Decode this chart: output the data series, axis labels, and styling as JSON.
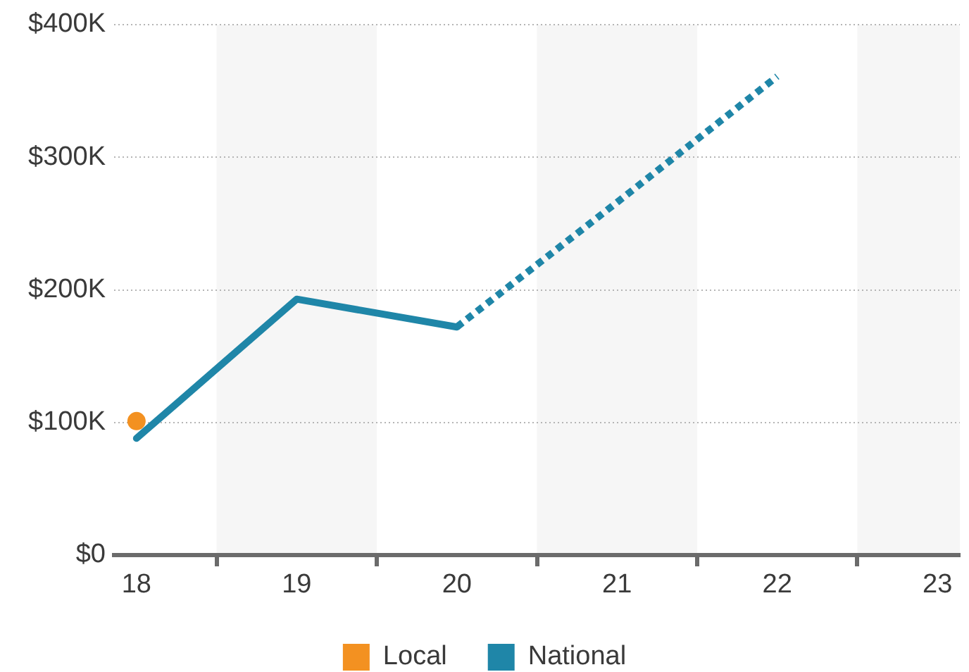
{
  "chart_data": {
    "type": "line",
    "x": [
      18,
      19,
      20,
      21,
      22
    ],
    "xlim": [
      17.86,
      23.14
    ],
    "xticks": [
      18,
      {
        "value": 18.5,
        "label": null
      },
      19,
      {
        "value": 19.5,
        "label": null
      },
      20,
      {
        "value": 20.5,
        "label": null
      },
      21,
      {
        "value": 21.5,
        "label": null
      },
      22,
      {
        "value": 22.5,
        "label": null
      },
      23
    ],
    "ylim": [
      0,
      400
    ],
    "yticks": [
      {
        "value": 0,
        "label": "$0"
      },
      {
        "value": 100,
        "label": "$100K"
      },
      {
        "value": 200,
        "label": "$200K"
      },
      {
        "value": 300,
        "label": "$300K"
      },
      {
        "value": 400,
        "label": "$400K"
      }
    ],
    "series": [
      {
        "name": "Local",
        "type": "scatter",
        "marker": "circle",
        "color": "#f39121",
        "values": [
          101,
          null,
          null,
          null,
          null
        ]
      },
      {
        "name": "National",
        "color": "#1f86a8",
        "values": [
          88,
          193,
          172,
          null,
          null
        ]
      },
      {
        "color": "#1f86a8",
        "line_style": "dotted",
        "values": [
          null,
          null,
          172,
          266,
          361
        ]
      }
    ],
    "bands": [
      {
        "axis": "x",
        "from": 18.5,
        "to": 19.5,
        "color": "#f6f6f6"
      },
      {
        "axis": "x",
        "from": 20.5,
        "to": 21.5,
        "color": "#f6f6f6"
      },
      {
        "axis": "x",
        "from": 22.5,
        "to": 23.14,
        "color": "#f6f6f6"
      }
    ],
    "grid": "y",
    "legend": "bottom",
    "marker": "none",
    "line_style": "solid"
  }
}
